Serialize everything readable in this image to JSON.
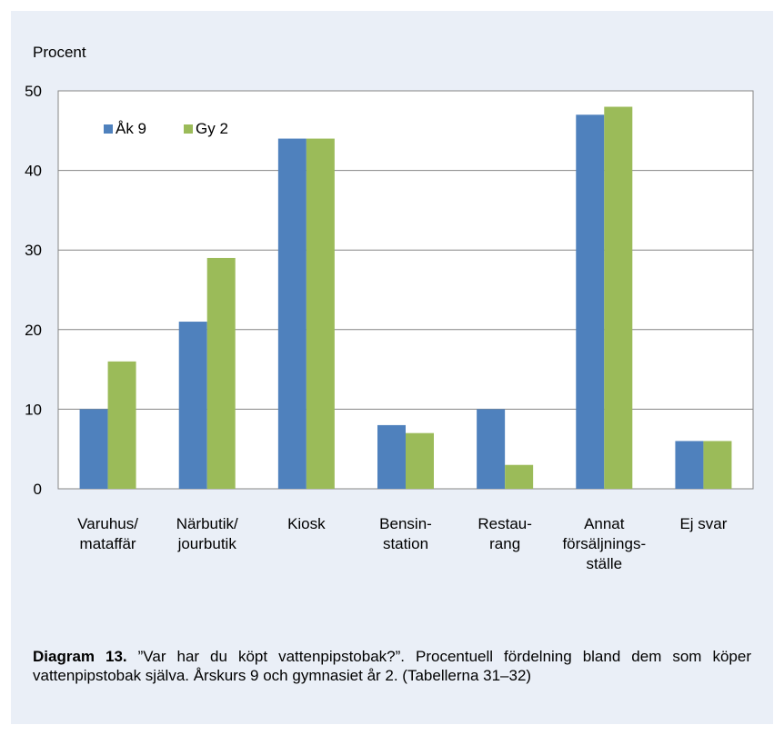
{
  "chart_data": {
    "type": "bar",
    "ylabel": "Procent",
    "ylim": [
      0,
      50
    ],
    "yticks": [
      0,
      10,
      20,
      30,
      40,
      50
    ],
    "grid": true,
    "legend_position": "top-left",
    "categories": [
      [
        "Varuhus/",
        "mataffär"
      ],
      [
        "Närbutik/",
        "jourbutik"
      ],
      [
        "Kiosk"
      ],
      [
        "Bensin-",
        "station"
      ],
      [
        "Restau-",
        "rang"
      ],
      [
        "Annat",
        "försäljnings-",
        "ställe"
      ],
      [
        "Ej svar"
      ]
    ],
    "series": [
      {
        "name": "Åk 9",
        "color": "#4f81bd",
        "values": [
          10,
          21,
          44,
          8,
          10,
          47,
          6
        ]
      },
      {
        "name": "Gy 2",
        "color": "#9bbb59",
        "values": [
          16,
          29,
          44,
          7,
          3,
          48,
          6
        ]
      }
    ]
  },
  "caption": {
    "label": "Diagram 13.",
    "text": " ”Var har du köpt vattenpipstobak?”. Procentuell fördelning bland dem som köper vattenpipstobak själva. Årskurs 9 och gymnasiet år 2. (Tabellerna 31–32)"
  }
}
